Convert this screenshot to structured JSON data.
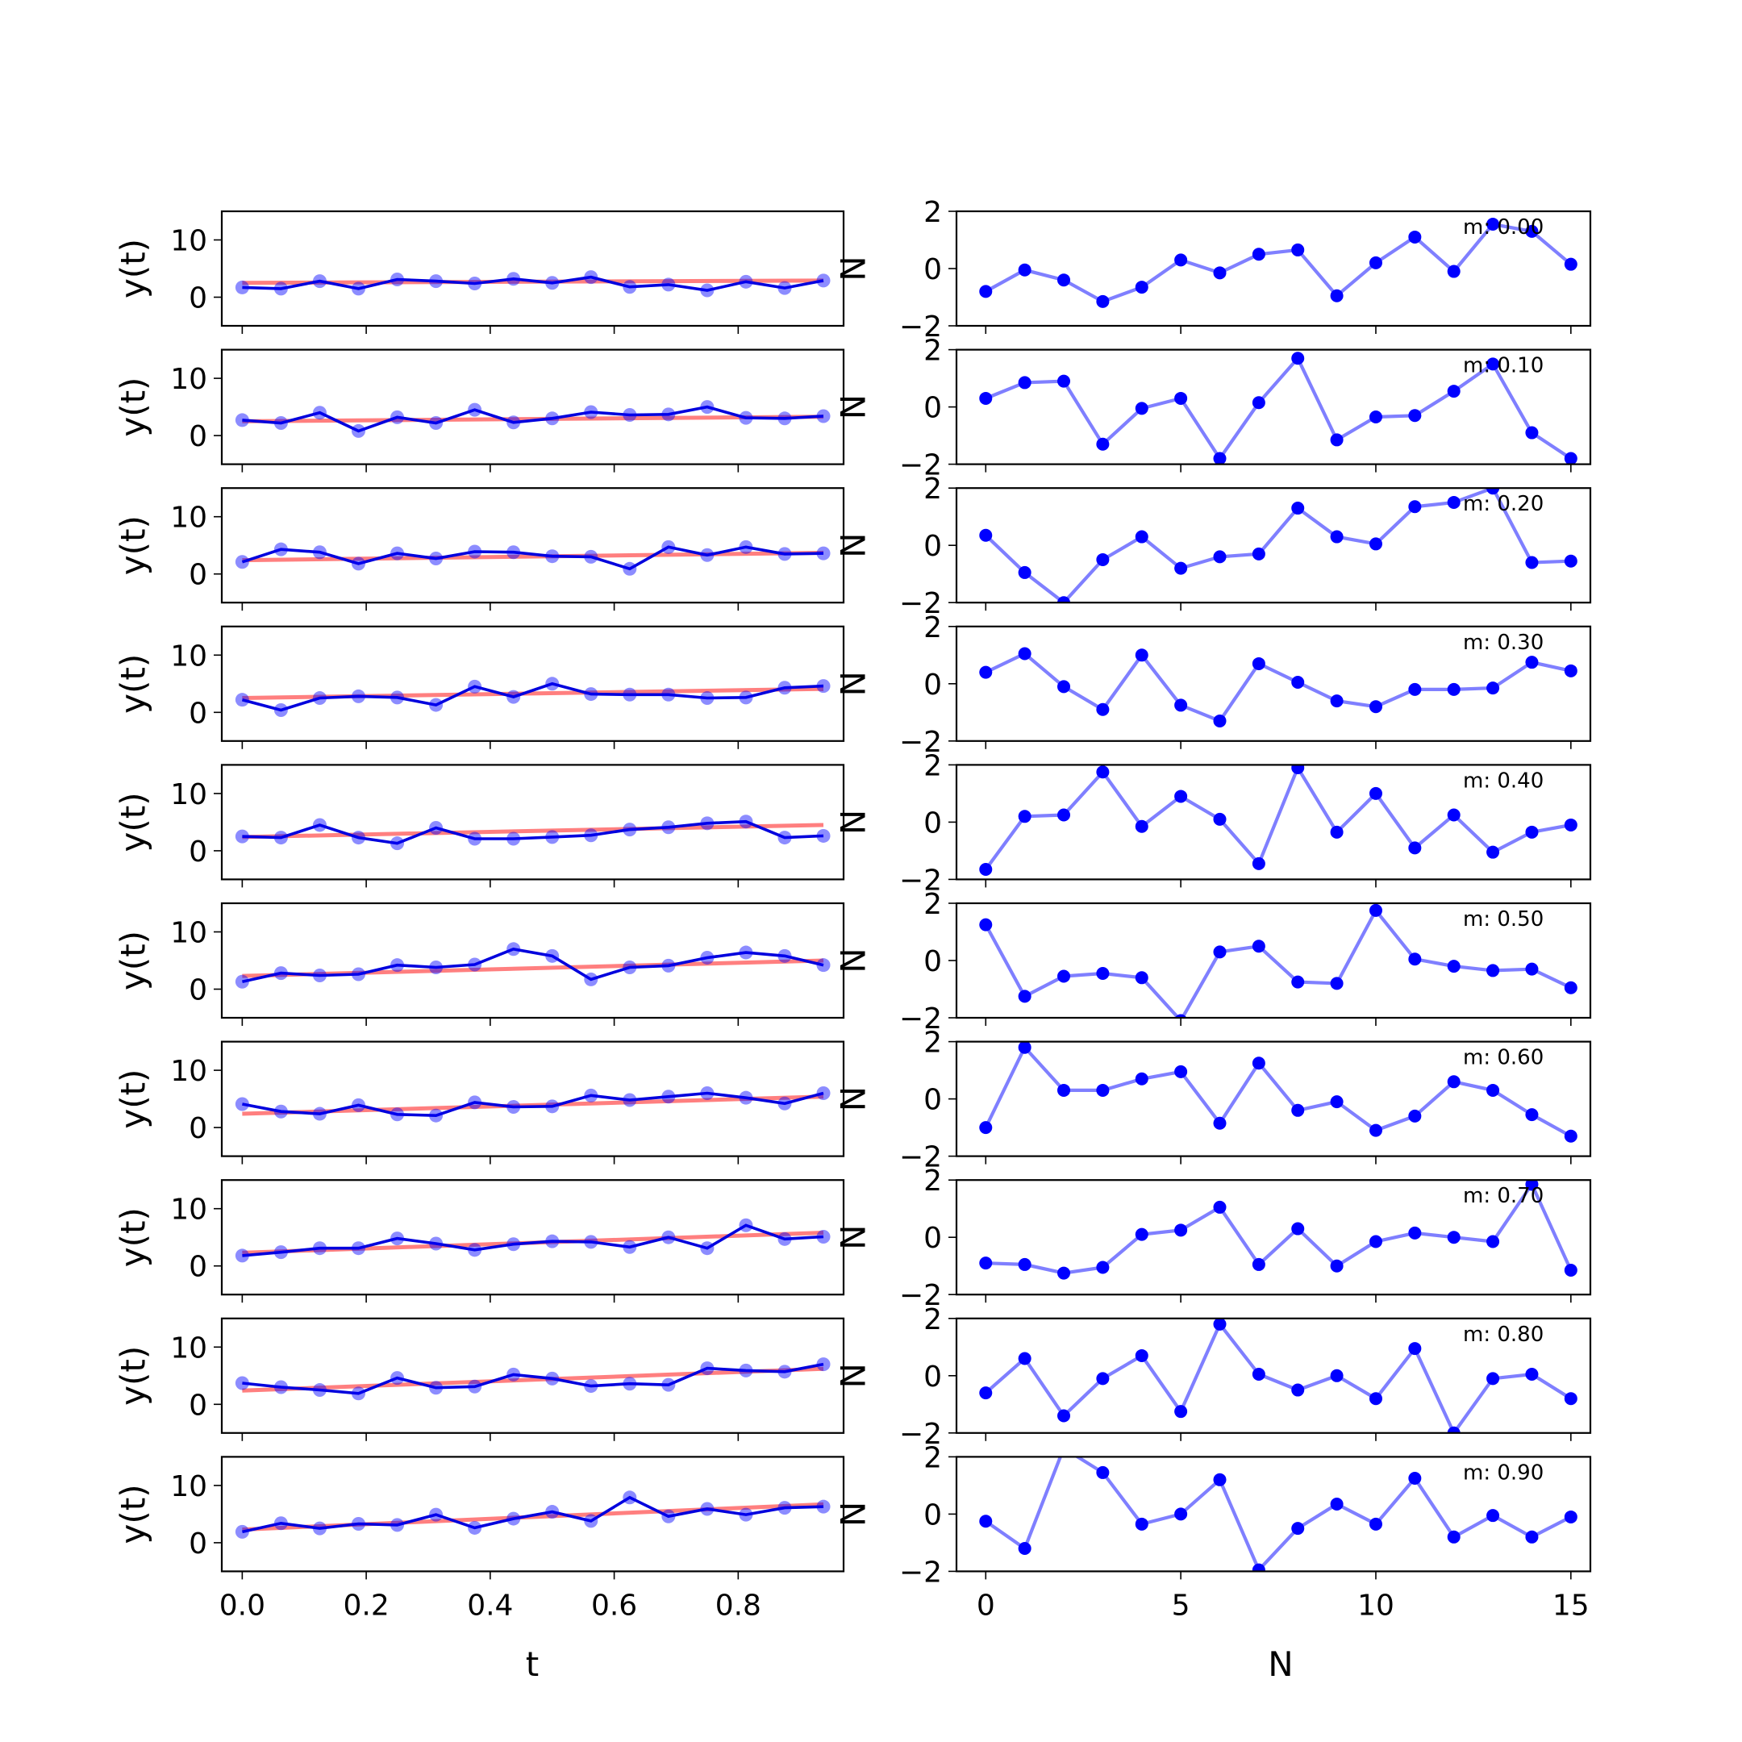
{
  "chart_data": {
    "type": "line",
    "left": {
      "xlabel": "t",
      "ylabel": "y(t)",
      "xlim": [
        -0.033,
        0.97
      ],
      "ylim": [
        -5,
        15
      ],
      "yticks": [
        0,
        10
      ],
      "xticks": [
        0.0,
        0.2,
        0.4,
        0.6,
        0.8
      ],
      "xtick_labels": [
        "0.0",
        "0.2",
        "0.4",
        "0.6",
        "0.8"
      ],
      "clipped_right_ylabel": "N",
      "t": [
        0.0,
        0.0625,
        0.125,
        0.1875,
        0.25,
        0.3125,
        0.375,
        0.4375,
        0.5,
        0.5625,
        0.625,
        0.6875,
        0.75,
        0.8125,
        0.875,
        0.9375
      ],
      "panels": [
        {
          "trend": [
            2.5,
            2.9
          ],
          "y": [
            1.7,
            1.5,
            2.8,
            1.5,
            3.1,
            2.8,
            2.4,
            3.2,
            2.5,
            3.5,
            1.8,
            2.2,
            1.2,
            2.7,
            1.6,
            2.9
          ]
        },
        {
          "trend": [
            2.5,
            3.3
          ],
          "y": [
            2.7,
            2.2,
            4.0,
            0.8,
            3.2,
            2.2,
            4.5,
            2.3,
            3.0,
            4.1,
            3.6,
            3.7,
            5.0,
            3.1,
            3.0,
            3.4
          ]
        },
        {
          "trend": [
            2.4,
            3.7
          ],
          "y": [
            2.1,
            4.3,
            3.8,
            1.8,
            3.6,
            2.7,
            3.9,
            3.8,
            3.1,
            3.0,
            0.9,
            4.7,
            3.3,
            4.7,
            3.5,
            3.6
          ]
        },
        {
          "trend": [
            2.5,
            4.1
          ],
          "y": [
            2.2,
            0.4,
            2.5,
            2.8,
            2.6,
            1.3,
            4.5,
            2.7,
            5.0,
            3.2,
            3.1,
            3.1,
            2.5,
            2.6,
            4.3,
            4.6
          ]
        },
        {
          "trend": [
            2.4,
            4.5
          ],
          "y": [
            2.5,
            2.3,
            4.5,
            2.3,
            1.3,
            4.0,
            2.1,
            2.1,
            2.4,
            2.7,
            3.7,
            4.1,
            4.8,
            5.1,
            2.3,
            2.6
          ]
        },
        {
          "trend": [
            2.3,
            5.0
          ],
          "y": [
            1.3,
            2.8,
            2.4,
            2.6,
            4.2,
            3.8,
            4.3,
            7.0,
            5.8,
            1.7,
            3.8,
            4.1,
            5.5,
            6.4,
            5.8,
            4.2
          ]
        },
        {
          "trend": [
            2.4,
            5.4
          ],
          "y": [
            4.1,
            2.8,
            2.4,
            3.9,
            2.3,
            2.1,
            4.4,
            3.6,
            3.7,
            5.6,
            4.8,
            5.4,
            6.0,
            5.2,
            4.2,
            6.0
          ]
        },
        {
          "trend": [
            2.3,
            5.8
          ],
          "y": [
            1.8,
            2.4,
            3.1,
            3.1,
            4.8,
            3.9,
            2.8,
            3.8,
            4.3,
            4.2,
            3.3,
            5.0,
            3.1,
            7.1,
            4.7,
            5.1
          ]
        },
        {
          "trend": [
            2.4,
            6.2
          ],
          "y": [
            3.7,
            3.0,
            2.5,
            1.9,
            4.6,
            2.9,
            3.1,
            5.2,
            4.5,
            3.2,
            3.6,
            3.4,
            6.3,
            5.9,
            5.7,
            7.0
          ]
        },
        {
          "trend": [
            2.3,
            6.7
          ],
          "y": [
            1.9,
            3.4,
            2.5,
            3.3,
            3.1,
            4.9,
            2.6,
            4.2,
            5.4,
            3.8,
            7.9,
            4.6,
            5.9,
            4.9,
            6.1,
            6.3
          ]
        }
      ]
    },
    "right": {
      "xlabel": "N",
      "xlim": [
        -0.75,
        15.5
      ],
      "ylim": [
        -2,
        2
      ],
      "yticks": [
        -2,
        0,
        2
      ],
      "ytick_labels": [
        "−2",
        "0",
        "2"
      ],
      "xticks": [
        0,
        5,
        10,
        15
      ],
      "xtick_labels": [
        "0",
        "5",
        "10",
        "15"
      ],
      "n": [
        0,
        1,
        2,
        3,
        4,
        5,
        6,
        7,
        8,
        9,
        10,
        11,
        12,
        13,
        14,
        15
      ],
      "panels": [
        {
          "label": "m: 0.00",
          "values": [
            -0.8,
            -0.05,
            -0.4,
            -1.15,
            -0.65,
            0.3,
            -0.15,
            0.5,
            0.65,
            -0.95,
            0.2,
            1.1,
            -0.1,
            1.55,
            1.3,
            0.15
          ]
        },
        {
          "label": "m: 0.10",
          "values": [
            0.3,
            0.85,
            0.9,
            -1.3,
            -0.05,
            0.3,
            -1.8,
            0.15,
            1.7,
            -1.15,
            -0.35,
            -0.3,
            0.55,
            1.5,
            -0.9,
            -1.8
          ]
        },
        {
          "label": "m: 0.20",
          "values": [
            0.35,
            -0.95,
            -2.0,
            -0.5,
            0.3,
            -0.8,
            -0.4,
            -0.3,
            1.3,
            0.3,
            0.05,
            1.35,
            1.5,
            2.0,
            -0.6,
            -0.55
          ]
        },
        {
          "label": "m: 0.30",
          "values": [
            0.4,
            1.05,
            -0.1,
            -0.9,
            1.0,
            -0.75,
            -1.3,
            0.7,
            0.05,
            -0.6,
            -0.8,
            -0.2,
            -0.2,
            -0.15,
            0.75,
            0.45
          ]
        },
        {
          "label": "m: 0.40",
          "values": [
            -1.65,
            0.2,
            0.25,
            1.75,
            -0.15,
            0.9,
            0.1,
            -1.45,
            1.9,
            -0.35,
            1.0,
            -0.9,
            0.25,
            -1.05,
            -0.35,
            -0.1
          ]
        },
        {
          "label": "m: 0.50",
          "values": [
            1.25,
            -1.25,
            -0.55,
            -0.45,
            -0.6,
            -2.1,
            0.3,
            0.5,
            -0.75,
            -0.8,
            1.75,
            0.05,
            -0.2,
            -0.35,
            -0.3,
            -0.95
          ]
        },
        {
          "label": "m: 0.60",
          "values": [
            -1.0,
            1.8,
            0.3,
            0.3,
            0.7,
            0.95,
            -0.85,
            1.25,
            -0.4,
            -0.1,
            -1.1,
            -0.6,
            0.6,
            0.3,
            -0.55,
            -1.3
          ]
        },
        {
          "label": "m: 0.70",
          "values": [
            -0.9,
            -0.95,
            -1.25,
            -1.05,
            0.1,
            0.25,
            1.05,
            -0.95,
            0.3,
            -1.0,
            -0.15,
            0.15,
            0.0,
            -0.15,
            1.85,
            -1.15
          ]
        },
        {
          "label": "m: 0.80",
          "values": [
            -0.6,
            0.6,
            -1.4,
            -0.1,
            0.7,
            -1.25,
            1.8,
            0.05,
            -0.5,
            0.0,
            -0.8,
            0.95,
            -2.0,
            -0.1,
            0.05,
            -0.8
          ]
        },
        {
          "label": "m: 0.90",
          "values": [
            -0.25,
            -1.2,
            2.3,
            1.45,
            -0.35,
            0.0,
            1.2,
            -1.95,
            -0.5,
            0.35,
            -0.35,
            1.25,
            -0.8,
            -0.05,
            -0.8,
            -0.1
          ]
        }
      ]
    }
  }
}
